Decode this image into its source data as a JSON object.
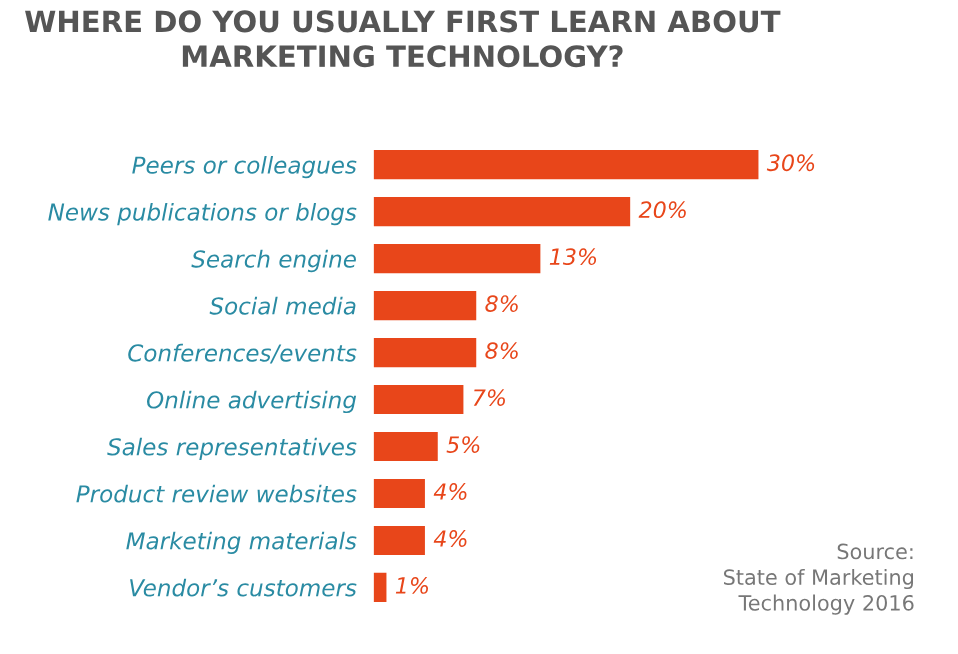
{
  "chart_data": {
    "type": "bar",
    "orientation": "horizontal",
    "title": "WHERE DO YOU USUALLY FIRST LEARN ABOUT\nMARKETING TECHNOLOGY?",
    "categories": [
      "Peers or colleagues",
      "News publications or blogs",
      "Search engine",
      "Social media",
      "Conferences/events",
      "Online advertising",
      "Sales representatives",
      "Product review websites",
      "Marketing materials",
      "Vendor’s customers"
    ],
    "values": [
      30,
      20,
      13,
      8,
      8,
      7,
      5,
      4,
      4,
      1
    ],
    "value_labels": [
      "30%",
      "20%",
      "13%",
      "8%",
      "8%",
      "7%",
      "5%",
      "4%",
      "4%",
      "1%"
    ],
    "color": "#e8461a",
    "grid": false,
    "legend": false,
    "annotations": [
      "Source:\nState of Marketing\nTechnology 2016"
    ]
  }
}
